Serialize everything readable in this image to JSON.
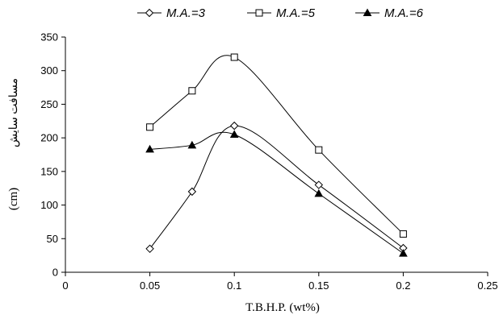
{
  "chart_data": {
    "type": "line",
    "title": "",
    "xlabel": "T.B.H.P. (wt%)",
    "ylabel": "(cm)",
    "ylabel_secondary": "مسافت سایش",
    "xlim": [
      0,
      0.25
    ],
    "ylim": [
      0,
      350
    ],
    "xticks": [
      0,
      0.05,
      0.1,
      0.15,
      0.2,
      0.25
    ],
    "xtick_labels": [
      "0",
      "0.05",
      "0.1",
      "0.15",
      "0.2",
      "0.25"
    ],
    "yticks": [
      0,
      50,
      100,
      150,
      200,
      250,
      300,
      350
    ],
    "ytick_labels": [
      "0",
      "50",
      "100",
      "150",
      "200",
      "250",
      "300",
      "350"
    ],
    "grid": false,
    "legend_position": "top",
    "series": [
      {
        "name": "M.A.=3",
        "marker": "diamond-open",
        "color": "#000000",
        "x": [
          0.05,
          0.075,
          0.1,
          0.15,
          0.2
        ],
        "y": [
          35,
          120,
          218,
          130,
          36
        ]
      },
      {
        "name": "M.A.=5",
        "marker": "square-open",
        "color": "#000000",
        "x": [
          0.05,
          0.075,
          0.1,
          0.15,
          0.2
        ],
        "y": [
          216,
          270,
          320,
          182,
          57
        ]
      },
      {
        "name": "M.A.=6",
        "marker": "triangle-filled",
        "color": "#000000",
        "x": [
          0.05,
          0.075,
          0.1,
          0.15,
          0.2
        ],
        "y": [
          183,
          189,
          205,
          117,
          28
        ]
      }
    ]
  }
}
